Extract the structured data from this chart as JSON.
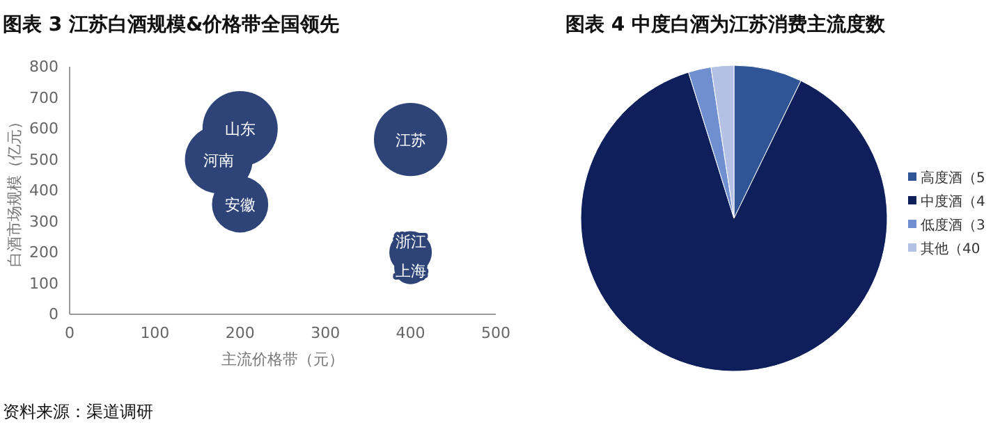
{
  "chart_data": [
    {
      "type": "bubble",
      "title": "图表 3 江苏白酒规模&价格带全国领先",
      "xlabel": "主流价格带（元）",
      "ylabel": "白酒市场规模（亿元）",
      "x": [
        200,
        175,
        200,
        400,
        400,
        400
      ],
      "values": [
        600,
        500,
        355,
        565,
        200,
        150
      ],
      "sizes": [
        1,
        0.81,
        0.56,
        0.95,
        0.32,
        0.19
      ],
      "color": "#2e4478",
      "xlim": [
        0,
        500
      ],
      "xticks": [
        0,
        100,
        200,
        300,
        400,
        500
      ],
      "ylim": [
        0,
        800
      ],
      "yticks": [
        0,
        100,
        200,
        300,
        400,
        500,
        600,
        700,
        800
      ],
      "annotations": [
        {
          "text": "山东",
          "x": 200,
          "y": 600
        },
        {
          "text": "河南",
          "x": 175,
          "y": 500
        },
        {
          "text": "安徽",
          "x": 200,
          "y": 355
        },
        {
          "text": "江苏",
          "x": 400,
          "y": 565
        },
        {
          "text": "浙江",
          "x": 400,
          "y": 200
        },
        {
          "text": "上海",
          "x": 400,
          "y": 150
        },
        "资料来源：渠道调研"
      ]
    },
    {
      "type": "pie",
      "title": "图表 4 中度白酒为江苏消费主流度数",
      "categories": [
        "高度酒（5",
        "中度酒（4",
        "低度酒（3",
        "其他（40"
      ],
      "values": [
        7.2,
        88.0,
        2.4,
        2.4
      ],
      "colors": [
        "#2f5597",
        "#0e1f5b",
        "#6f8fd0",
        "#b4c0e4"
      ],
      "legend": "right"
    }
  ]
}
